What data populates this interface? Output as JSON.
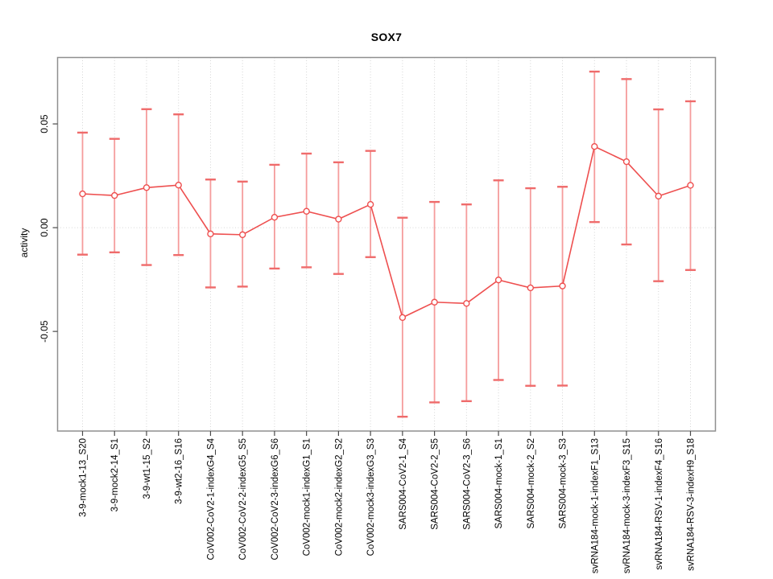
{
  "title": "SOX7",
  "colors": {
    "series_red": "#ee4f4f",
    "error_bar_stem": "#f59c9c",
    "error_bar_cap": "#ef6b6b",
    "gridline": "#d4d4d4",
    "zero_line": "#d8d8d8",
    "box": "#8f8f8f",
    "tick": "#4a4a4a",
    "text": "#000000",
    "background": "#ffffff",
    "marker_fill": "#ffffff"
  },
  "chart_data": {
    "type": "line",
    "subtype": "points-with-error-bars",
    "title": "SOX7",
    "xlabel": "",
    "ylabel": "activity",
    "legend": "none",
    "grid": "vertical dotted line at each category; horizontal dotted line at y=0",
    "marker": "open-circle",
    "ylim": [
      -0.098,
      0.082
    ],
    "yticks": [
      -0.05,
      0,
      0.05
    ],
    "ytick_labels": [
      "-0.05",
      "0.00",
      "0.05"
    ],
    "categories": [
      "3-9-mock1-13_S20",
      "3-9-mock2-14_S1",
      "3-9-wt1-15_S2",
      "3-9-wt2-16_S16",
      "CoV002-CoV2-1-indexG4_S4",
      "CoV002-CoV2-2-indexG5_S5",
      "CoV002-CoV2-3-indexG6_S6",
      "CoV002-mock1-indexG1_S1",
      "CoV002-mock2-indexG2_S2",
      "CoV002-mock3-indexG3_S3",
      "SARS004-CoV2-1_S4",
      "SARS004-CoV2-2_S5",
      "SARS004-CoV2-3_S6",
      "SARS004-mock-1_S1",
      "SARS004-mock-2_S2",
      "SARS004-mock-3_S3",
      "svRNA184-mock-1-indexF1_S13",
      "svRNA184-mock-3-indexF3_S15",
      "svRNA184-RSV-1-indexF4_S16",
      "svRNA184-RSV-3-indexH9_S18"
    ],
    "series": [
      {
        "name": "activity",
        "values": [
          0.0163,
          0.0155,
          0.0193,
          0.0205,
          -0.003,
          -0.0034,
          0.005,
          0.0079,
          0.0041,
          0.0112,
          -0.0433,
          -0.0359,
          -0.0365,
          -0.0252,
          -0.029,
          -0.0281,
          0.0391,
          0.0318,
          0.0152,
          0.0204
        ],
        "lower": [
          -0.013,
          -0.0119,
          -0.018,
          -0.0132,
          -0.0288,
          -0.0284,
          -0.0197,
          -0.0191,
          -0.0223,
          -0.0142,
          -0.0911,
          -0.0842,
          -0.0836,
          -0.0734,
          -0.0762,
          -0.0761,
          0.0027,
          -0.0081,
          -0.0258,
          -0.0204
        ],
        "upper": [
          0.0458,
          0.0428,
          0.0571,
          0.0546,
          0.0232,
          0.0222,
          0.0303,
          0.0357,
          0.0315,
          0.037,
          0.0048,
          0.0124,
          0.0112,
          0.0228,
          0.019,
          0.0197,
          0.0752,
          0.0716,
          0.057,
          0.0609
        ]
      }
    ]
  }
}
